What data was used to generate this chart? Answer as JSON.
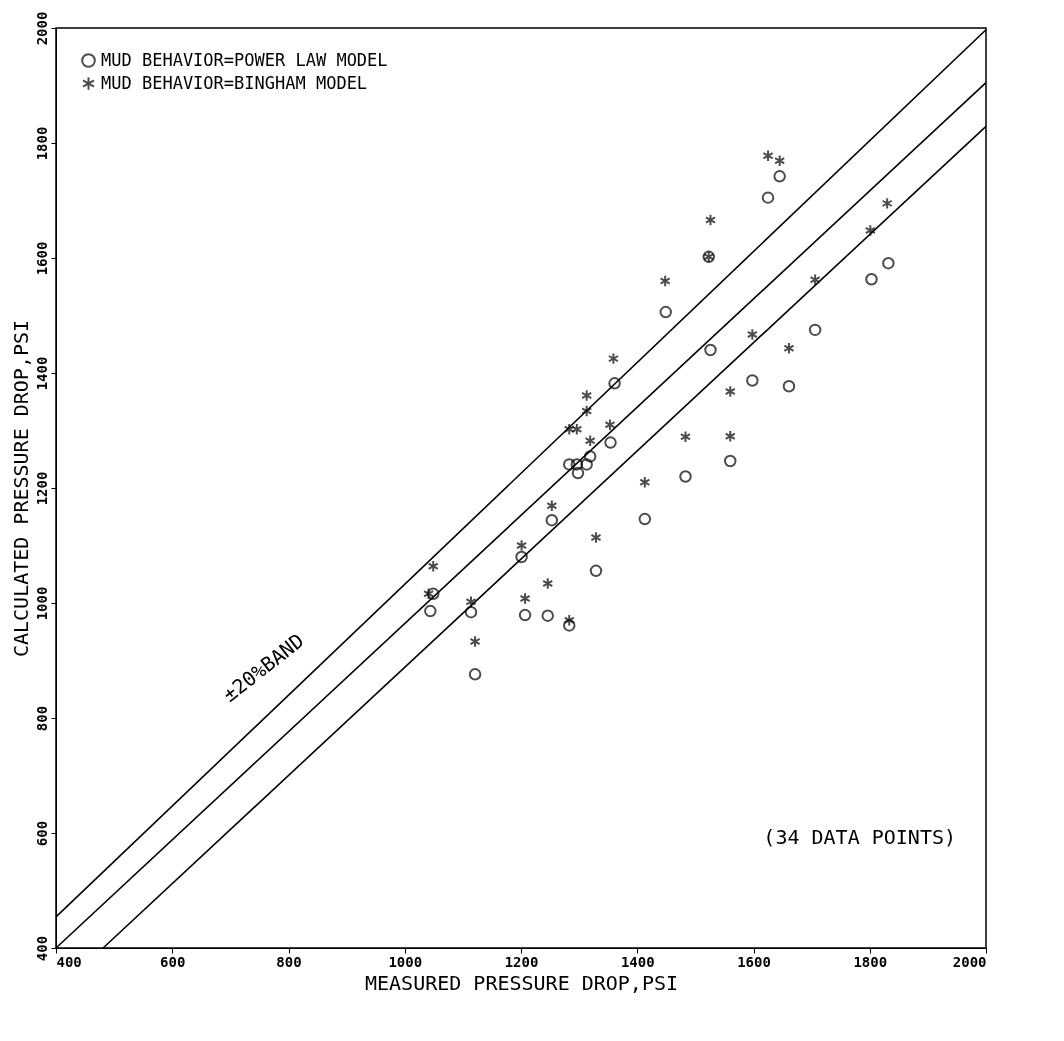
{
  "chart_data": {
    "type": "scatter",
    "xlabel": "MEASURED PRESSURE DROP,PSI",
    "ylabel": "CALCULATED PRESSURE DROP,PSI",
    "xlim": [
      400,
      2000
    ],
    "ylim": [
      400,
      2000
    ],
    "xticks": [
      400,
      600,
      800,
      1000,
      1200,
      1400,
      1600,
      1800,
      2000
    ],
    "yticks": [
      400,
      600,
      800,
      1000,
      1200,
      1400,
      1600,
      1800,
      2000
    ],
    "grid": false,
    "legend": "top left",
    "series": [
      {
        "name": "MUD BEHAVIOR=POWER LAW MODEL",
        "color": "#000000",
        "marker": "circle",
        "x": [
          1449,
          1361,
          1354,
          1319,
          1283,
          1296,
          1313,
          1298,
          1253,
          1201,
          1049,
          1044,
          1114,
          1121,
          1207,
          1246,
          1283,
          1329,
          1413,
          1483,
          1645,
          1625,
          1523,
          1526,
          1832,
          1803,
          1706,
          1598,
          1661,
          1560
        ],
        "values": [
          1506,
          1382,
          1279,
          1255,
          1241,
          1241,
          1241,
          1226,
          1144,
          1080,
          1016,
          986,
          984,
          876,
          979,
          978,
          961,
          1056,
          1146,
          1220,
          1742,
          1705,
          1602,
          1440,
          1591,
          1563,
          1475,
          1387,
          1377,
          1247
        ]
      },
      {
        "name": "MUD BEHAVIOR=BINGHAM MODEL",
        "color": "#000000",
        "marker": "cross",
        "x": [
          1448,
          1359,
          1313,
          1313,
          1283,
          1296,
          1319,
          1353,
          1253,
          1201,
          1049,
          1041,
          1114,
          1121,
          1207,
          1246,
          1283,
          1329,
          1413,
          1483,
          1625,
          1645,
          1526,
          1523,
          1830,
          1801,
          1706,
          1598,
          1661,
          1560,
          1560
        ],
        "values": [
          1560,
          1425,
          1361,
          1334,
          1302,
          1302,
          1282,
          1310,
          1169,
          1100,
          1064,
          1016,
          1002,
          933,
          1008,
          1034,
          970,
          1114,
          1210,
          1289,
          1778,
          1769,
          1666,
          1602,
          1695,
          1648,
          1562,
          1467,
          1443,
          1368,
          1290
        ]
      },
      {
        "type": "line",
        "color": "#000000",
        "x": [
          400,
          2000
        ],
        "values": [
          454,
          1997
        ]
      },
      {
        "type": "line",
        "color": "#000000",
        "x": [
          400,
          2000
        ],
        "values": [
          400,
          1905
        ]
      },
      {
        "type": "line",
        "color": "#000000",
        "x": [
          481,
          2000
        ],
        "values": [
          400,
          1829
        ]
      }
    ],
    "annotations": [
      "±20%BAND",
      "(34 DATA POINTS)"
    ]
  }
}
